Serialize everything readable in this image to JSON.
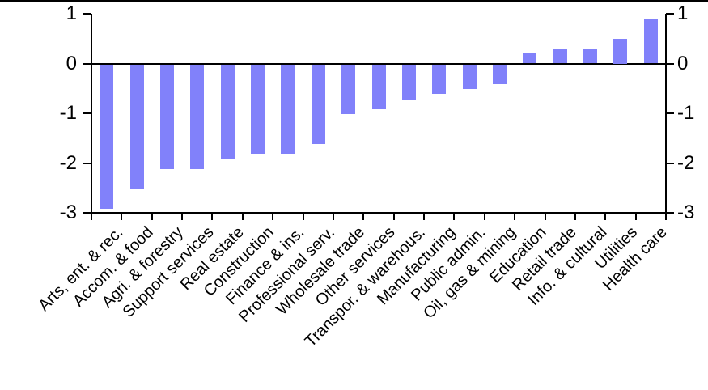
{
  "chart_data": {
    "type": "bar",
    "title": "",
    "xlabel": "",
    "ylabel": "",
    "categories": [
      "Arts, ent. & rec.",
      "Accom. & food",
      "Agri. & forestry",
      "Support services",
      "Real estate",
      "Construction",
      "Finance & ins.",
      "Professional serv.",
      "Wholesale trade",
      "Other services",
      "Transpor. & warehous.",
      "Manufacturing",
      "Public admin.",
      "Oil, gas & mining",
      "Education",
      "Retail trade",
      "Info. & cultural",
      "Utilities",
      "Health care"
    ],
    "values": [
      -2.9,
      -2.5,
      -2.1,
      -2.1,
      -1.9,
      -1.8,
      -1.8,
      -1.6,
      -1.0,
      -0.9,
      -0.7,
      -0.6,
      -0.5,
      -0.4,
      0.2,
      0.3,
      0.3,
      0.5,
      0.9
    ],
    "ylim": [
      -3,
      1
    ],
    "yticks": [
      "1",
      "0",
      "-1",
      "-2",
      "-3"
    ],
    "ytick_values": [
      1,
      0,
      -1,
      -2,
      -3
    ],
    "dual_y_axis": true,
    "grid": false,
    "legend": null,
    "x_label_rotation_deg": 45,
    "bar_color": "#8181fa",
    "axis_color": "#000000",
    "background_color": "#ffffff",
    "top_border_color": "#000000"
  }
}
